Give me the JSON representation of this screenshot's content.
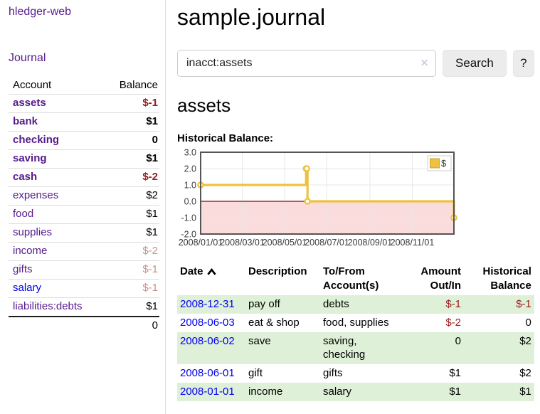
{
  "sidebar": {
    "brand": "hledger-web",
    "nav": {
      "journal": "Journal"
    },
    "accounts_table": {
      "headers": {
        "account": "Account",
        "balance": "Balance"
      },
      "rows": [
        {
          "name": "assets",
          "balance": "$-1"
        },
        {
          "name": "bank",
          "balance": "$1"
        },
        {
          "name": "checking",
          "balance": "0"
        },
        {
          "name": "saving",
          "balance": "$1"
        },
        {
          "name": "cash",
          "balance": "$-2"
        },
        {
          "name": "expenses",
          "balance": "$2"
        },
        {
          "name": "food",
          "balance": "$1"
        },
        {
          "name": "supplies",
          "balance": "$1"
        },
        {
          "name": "income",
          "balance": "$-2"
        },
        {
          "name": "gifts",
          "balance": "$-1"
        },
        {
          "name": "salary",
          "balance": "$-1"
        },
        {
          "name": "liabilities:debts",
          "balance": "$1"
        }
      ],
      "total": "0"
    }
  },
  "header": {
    "title": "sample.journal"
  },
  "search": {
    "query": "inacct:assets",
    "clear_icon": "✕",
    "button_label": "Search",
    "help_label": "?"
  },
  "account_page": {
    "title": "assets",
    "chart_label": "Historical Balance:"
  },
  "chart_data": {
    "type": "line",
    "title": "Historical Balance",
    "step": true,
    "series": [
      {
        "name": "$",
        "points": [
          {
            "x": "2008-01-01",
            "y": 1
          },
          {
            "x": "2008-06-01",
            "y": 2
          },
          {
            "x": "2008-06-02",
            "y": 2
          },
          {
            "x": "2008-06-03",
            "y": 0
          },
          {
            "x": "2008-12-31",
            "y": -1
          }
        ]
      }
    ],
    "x_range": [
      "2008-01-01",
      "2008-12-31"
    ],
    "x_ticks": [
      "2008/01/01",
      "2008/03/01",
      "2008/05/01",
      "2008/07/01",
      "2008/09/01",
      "2008/11/01"
    ],
    "y_ticks": [
      3.0,
      2.0,
      1.0,
      0.0,
      -1.0,
      -2.0
    ],
    "ylim": [
      -2,
      3
    ],
    "grid": true,
    "negative_region_shaded": true,
    "legend": {
      "position": "top-right",
      "label": "$"
    }
  },
  "register": {
    "headers": [
      "Date",
      "Description",
      "To/From\nAccount(s)",
      "Amount\nOut/In",
      "Historical\nBalance"
    ],
    "rows": [
      {
        "date": "2008-12-31",
        "description": "pay off",
        "accounts": "debts",
        "amount": "$-1",
        "balance": "$-1"
      },
      {
        "date": "2008-06-03",
        "description": "eat & shop",
        "accounts": "food, supplies",
        "amount": "$-2",
        "balance": "0"
      },
      {
        "date": "2008-06-02",
        "description": "save",
        "accounts": "saving,\nchecking",
        "amount": "0",
        "balance": "$2"
      },
      {
        "date": "2008-06-01",
        "description": "gift",
        "accounts": "gifts",
        "amount": "$1",
        "balance": "$2"
      },
      {
        "date": "2008-01-01",
        "description": "income",
        "accounts": "salary",
        "amount": "$1",
        "balance": "$1"
      }
    ]
  },
  "colors": {
    "link_purple": "#551a8b",
    "link_blue": "#0000ee",
    "negative_red": "#971b1e",
    "negative_faded": "#c98f8f",
    "row_stripe_green": "#dff0d8",
    "chart_line_yellow": "#edc240",
    "chart_fill_pink": "#fbdcdc",
    "zero_line_red": "#9b0000",
    "chart_border_gray": "#545454"
  }
}
